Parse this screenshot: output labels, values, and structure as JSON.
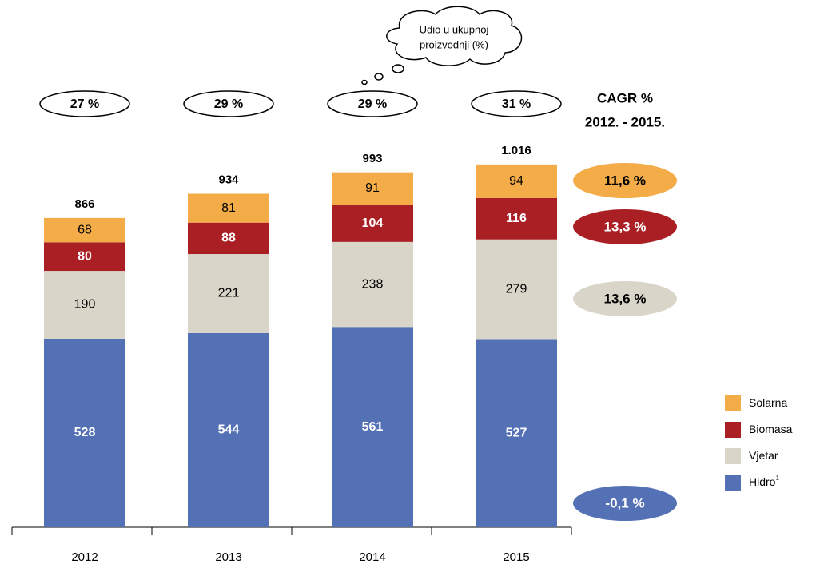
{
  "chart_data": {
    "type": "bar",
    "stacked": true,
    "categories": [
      "2012",
      "2013",
      "2014",
      "2015"
    ],
    "series": [
      {
        "name": "Hidro",
        "footnote": "1",
        "color": "#5571b5",
        "label_color": "#ffffff",
        "values": [
          528,
          544,
          561,
          527
        ],
        "cagr": -0.1,
        "cagr_label": "-0,1 %"
      },
      {
        "name": "Vjetar",
        "color": "#d9d5c9",
        "label_color": "#000000",
        "values": [
          190,
          221,
          238,
          279
        ],
        "cagr": 13.6,
        "cagr_label": "13,6 %"
      },
      {
        "name": "Biomasa",
        "color": "#a91f24",
        "label_color": "#ffffff",
        "values": [
          80,
          88,
          104,
          116
        ],
        "cagr": 13.3,
        "cagr_label": "13,3 %"
      },
      {
        "name": "Solarna",
        "color": "#f3ac48",
        "label_color": "#000000",
        "values": [
          68,
          81,
          91,
          94
        ],
        "cagr": 11.6,
        "cagr_label": "11,6 %"
      }
    ],
    "totals": {
      "values": [
        866,
        934,
        993,
        1016
      ],
      "value_labels": [
        "866",
        "934",
        "993",
        "1.016"
      ]
    },
    "shares": {
      "values": [
        27,
        29,
        29,
        31
      ],
      "value_labels": [
        "27 %",
        "29 %",
        "29 %",
        "31 %"
      ]
    },
    "annotation": [
      "Udio u ukupnoj",
      "proizvodnji (%)"
    ],
    "cagr_title": [
      "CAGR %",
      "2012. - 2015."
    ],
    "legend": "right"
  }
}
